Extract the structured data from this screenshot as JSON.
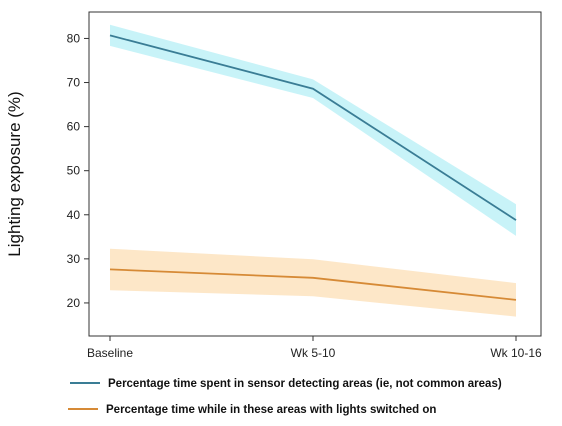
{
  "chart_data": {
    "type": "line",
    "categories": [
      "Baseline",
      "Wk 5-10",
      "Wk 10-16"
    ],
    "ylabel": "Lighting exposure (%)",
    "yticks": [
      20,
      30,
      40,
      50,
      60,
      70,
      80
    ],
    "ylim": [
      12.5,
      86
    ],
    "grid": false,
    "legend_placement": "bottom",
    "series": [
      {
        "name": "Percentage time spent in sensor detecting areas (ie, not common areas)",
        "values": [
          80.7,
          68.6,
          38.8
        ],
        "lower": [
          78.3,
          66.5,
          35.2
        ],
        "upper": [
          83.1,
          70.7,
          42.4
        ],
        "line_color": "#3a7d95",
        "band_color": "#c2f2f7"
      },
      {
        "name": "Percentage time while in these areas with lights switched on",
        "values": [
          27.6,
          25.7,
          20.7
        ],
        "lower": [
          22.9,
          21.5,
          16.9
        ],
        "upper": [
          32.3,
          29.9,
          24.5
        ],
        "line_color": "#d68a36",
        "band_color": "#fde4c2"
      }
    ]
  }
}
